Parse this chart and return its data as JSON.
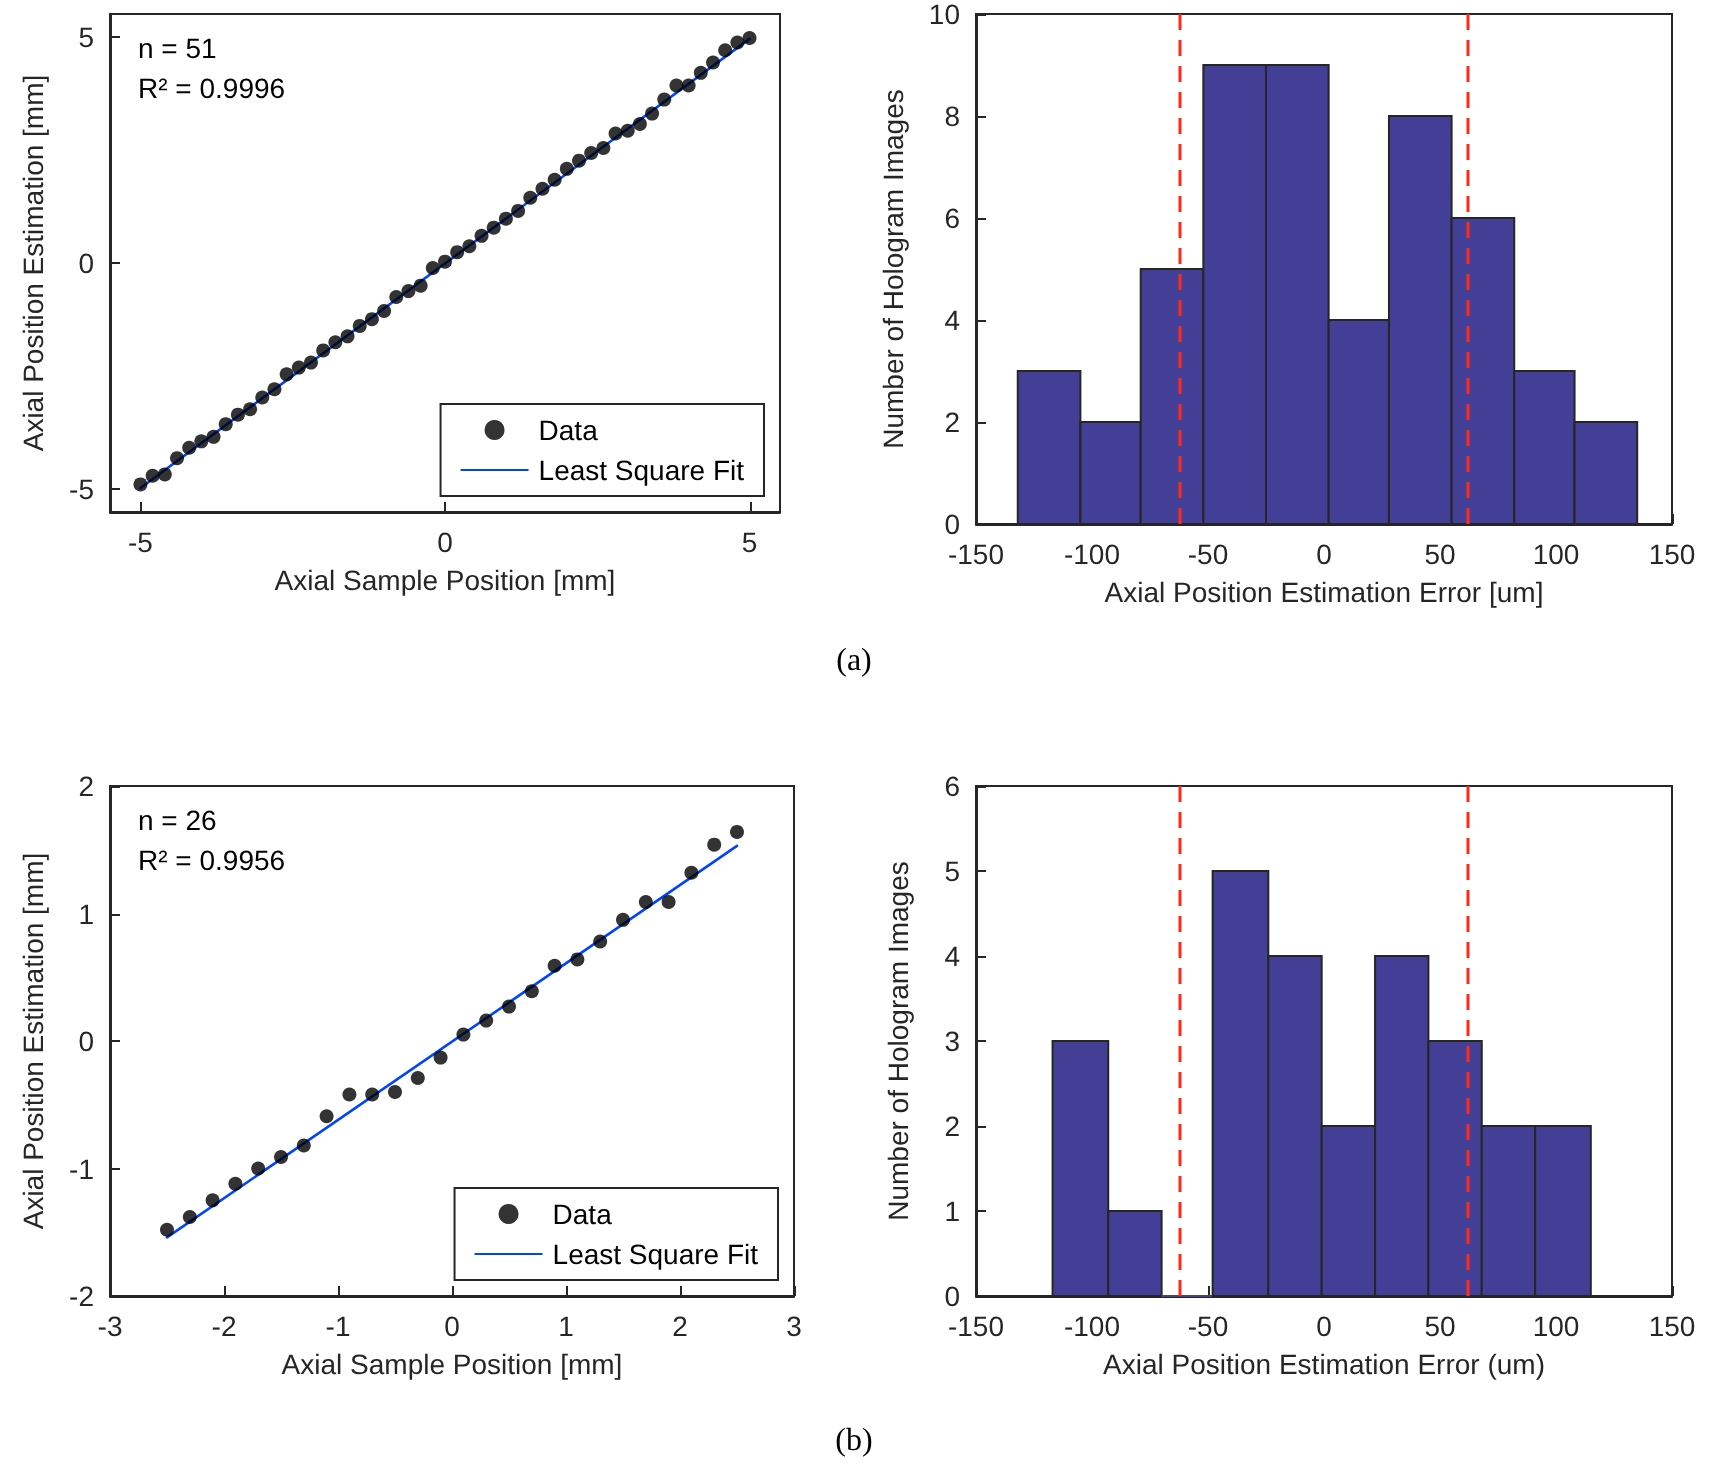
{
  "chart_data": [
    {
      "type": "scatter",
      "xlabel": "Axial Sample Position [mm]",
      "ylabel": "Axial Position Estimation [mm]",
      "xlim": [
        -5.5,
        5.5
      ],
      "xticks": [
        -5,
        0,
        5
      ],
      "ylim": [
        -5.5,
        5.5
      ],
      "yticks": [
        -5,
        0,
        5
      ],
      "grid": false,
      "legend": "bottom right",
      "annotations": [
        "n = 51",
        "R² = 0.9996"
      ],
      "series": [
        {
          "name": "Data",
          "type": "scatter",
          "color": "#000000",
          "marker": "circle",
          "x": [
            -5,
            -4.8,
            -4.6,
            -4.4,
            -4.2,
            -4,
            -3.8,
            -3.6,
            -3.4,
            -3.2,
            -3,
            -2.8,
            -2.6,
            -2.4,
            -2.2,
            -2,
            -1.8,
            -1.6,
            -1.4,
            -1.2,
            -1,
            -0.8,
            -0.6,
            -0.4,
            -0.2,
            0,
            0.2,
            0.4,
            0.6,
            0.8,
            1,
            1.2,
            1.4,
            1.6,
            1.8,
            2,
            2.2,
            2.4,
            2.6,
            2.8,
            3,
            3.2,
            3.4,
            3.6,
            3.8,
            4,
            4.2,
            4.4,
            4.6,
            4.8,
            5
          ],
          "values": [
            -4.89,
            -4.7,
            -4.67,
            -4.31,
            -4.08,
            -3.94,
            -3.84,
            -3.56,
            -3.35,
            -3.23,
            -2.97,
            -2.79,
            -2.46,
            -2.31,
            -2.2,
            -1.93,
            -1.75,
            -1.62,
            -1.39,
            -1.24,
            -1.06,
            -0.75,
            -0.62,
            -0.5,
            -0.11,
            0.03,
            0.24,
            0.37,
            0.6,
            0.78,
            0.98,
            1.15,
            1.44,
            1.64,
            1.84,
            2.08,
            2.26,
            2.43,
            2.54,
            2.86,
            2.92,
            3.07,
            3.3,
            3.61,
            3.92,
            3.92,
            4.2,
            4.43,
            4.7,
            4.87,
            4.97
          ]
        },
        {
          "name": "Least Square Fit",
          "type": "line",
          "color": "#0044ff",
          "marker": "none",
          "line_style": "solid",
          "x": [
            -5,
            5
          ],
          "values": [
            -4.97,
            4.95
          ]
        }
      ]
    },
    {
      "type": "histogram",
      "xlabel": "Axial Position Estimation Error [um]",
      "ylabel": "Number of Hologram Images",
      "xlim": [
        -150,
        150
      ],
      "xticks": [
        -150,
        -100,
        -50,
        0,
        50,
        100,
        150
      ],
      "ylim": [
        0,
        10
      ],
      "yticks": [
        0,
        2,
        4,
        6,
        8,
        10
      ],
      "grid": false,
      "legend": false,
      "color": "#433e96",
      "bins": [
        -132,
        -105,
        -79,
        -52,
        -25,
        2,
        28,
        55,
        82,
        108,
        135
      ],
      "values": [
        3,
        2,
        5,
        9,
        9,
        4,
        8,
        6,
        3,
        2
      ],
      "ref_lines": [
        {
          "axis": "x",
          "value": -62,
          "color": "#ff2a1a",
          "line_style": "dashed"
        },
        {
          "axis": "x",
          "value": 62,
          "color": "#ff2a1a",
          "line_style": "dashed"
        }
      ],
      "annotations": [
        "(a)"
      ]
    },
    {
      "type": "scatter",
      "xlabel": "Axial Sample Position [mm]",
      "ylabel": "Axial Position Estimation [mm]",
      "xlim": [
        -3,
        3
      ],
      "xticks": [
        -3,
        -2,
        -1,
        0,
        1,
        2,
        3
      ],
      "ylim": [
        -2,
        2
      ],
      "yticks": [
        -2,
        -1,
        0,
        1,
        2
      ],
      "grid": false,
      "legend": "bottom right",
      "annotations": [
        "n = 26",
        "R² = 0.9956"
      ],
      "series": [
        {
          "name": "Data",
          "type": "scatter",
          "color": "#000000",
          "marker": "circle",
          "x": [
            -2.5,
            -2.3,
            -2.1,
            -1.9,
            -1.7,
            -1.5,
            -1.3,
            -1.1,
            -0.9,
            -0.7,
            -0.5,
            -0.3,
            -0.1,
            0.1,
            0.3,
            0.5,
            0.7,
            0.9,
            1.1,
            1.3,
            1.5,
            1.7,
            1.9,
            2.1,
            2.3,
            2.5
          ],
          "values": [
            -1.48,
            -1.38,
            -1.25,
            -1.12,
            -1,
            -0.91,
            -0.82,
            -0.59,
            -0.42,
            -0.42,
            -0.4,
            -0.29,
            -0.13,
            0.05,
            0.16,
            0.27,
            0.39,
            0.59,
            0.64,
            0.78,
            0.95,
            1.09,
            1.09,
            1.32,
            1.54,
            1.64
          ]
        },
        {
          "name": "Least Square Fit",
          "type": "line",
          "color": "#0044ff",
          "marker": "none",
          "line_style": "solid",
          "x": [
            -2.5,
            2.5
          ],
          "values": [
            -1.54,
            1.53
          ]
        }
      ]
    },
    {
      "type": "histogram",
      "xlabel": "Axial Position Estimation Error (um)",
      "ylabel": "Number of Hologram Images",
      "xlim": [
        -150,
        150
      ],
      "xticks": [
        -150,
        -100,
        -50,
        0,
        50,
        100,
        150
      ],
      "ylim": [
        0,
        6
      ],
      "yticks": [
        0,
        1,
        2,
        3,
        4,
        5,
        6
      ],
      "grid": false,
      "legend": false,
      "color": "#433e96",
      "bins": [
        -117,
        -93,
        -70,
        -48,
        -24,
        -1,
        22,
        45,
        68,
        91,
        115
      ],
      "values": [
        3,
        1,
        0,
        5,
        4,
        2,
        4,
        3,
        2,
        2
      ],
      "ref_lines": [
        {
          "axis": "x",
          "value": -62,
          "color": "#ff2a1a",
          "line_style": "dashed"
        },
        {
          "axis": "x",
          "value": 62,
          "color": "#ff2a1a",
          "line_style": "dashed"
        }
      ],
      "annotations": [
        "(b)"
      ]
    }
  ]
}
